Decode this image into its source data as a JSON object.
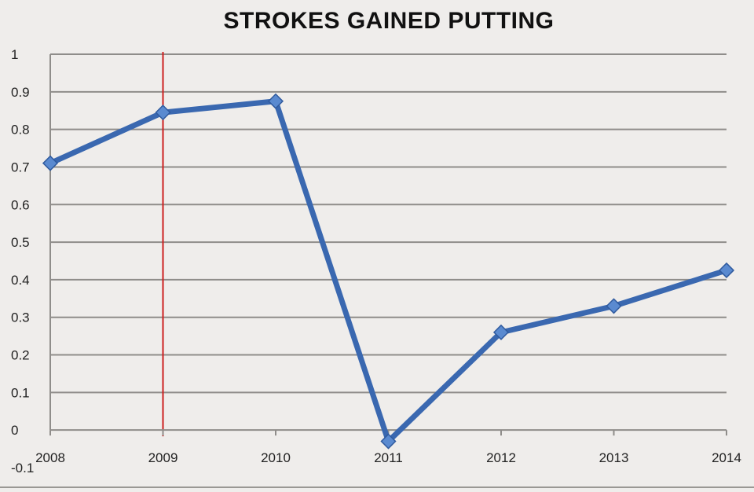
{
  "chart_data": {
    "type": "line",
    "title": "STROKES GAINED PUTTING",
    "xlabel": "",
    "ylabel": "",
    "x": [
      "2008",
      "2009",
      "2010",
      "2011",
      "2012",
      "2013",
      "2014"
    ],
    "series": [
      {
        "values": [
          0.71,
          0.845,
          0.875,
          -0.03,
          0.26,
          0.33,
          0.425
        ],
        "color": "#3a68b0",
        "marker": "diamond"
      }
    ],
    "ylim": [
      -0.1,
      1
    ],
    "y_ticks": [
      "-0.1",
      "0",
      "0.1",
      "0.2",
      "0.3",
      "0.4",
      "0.5",
      "0.6",
      "0.7",
      "0.8",
      "0.9",
      "1"
    ],
    "reference_line": {
      "x": "2009",
      "color": "#cc1f1f"
    },
    "grid": "horizontal",
    "legend": "none",
    "colors": {
      "background": "#efedeb",
      "grid": "#8f8d8a",
      "axis": "#8f8d8a",
      "text": "#222222"
    }
  }
}
